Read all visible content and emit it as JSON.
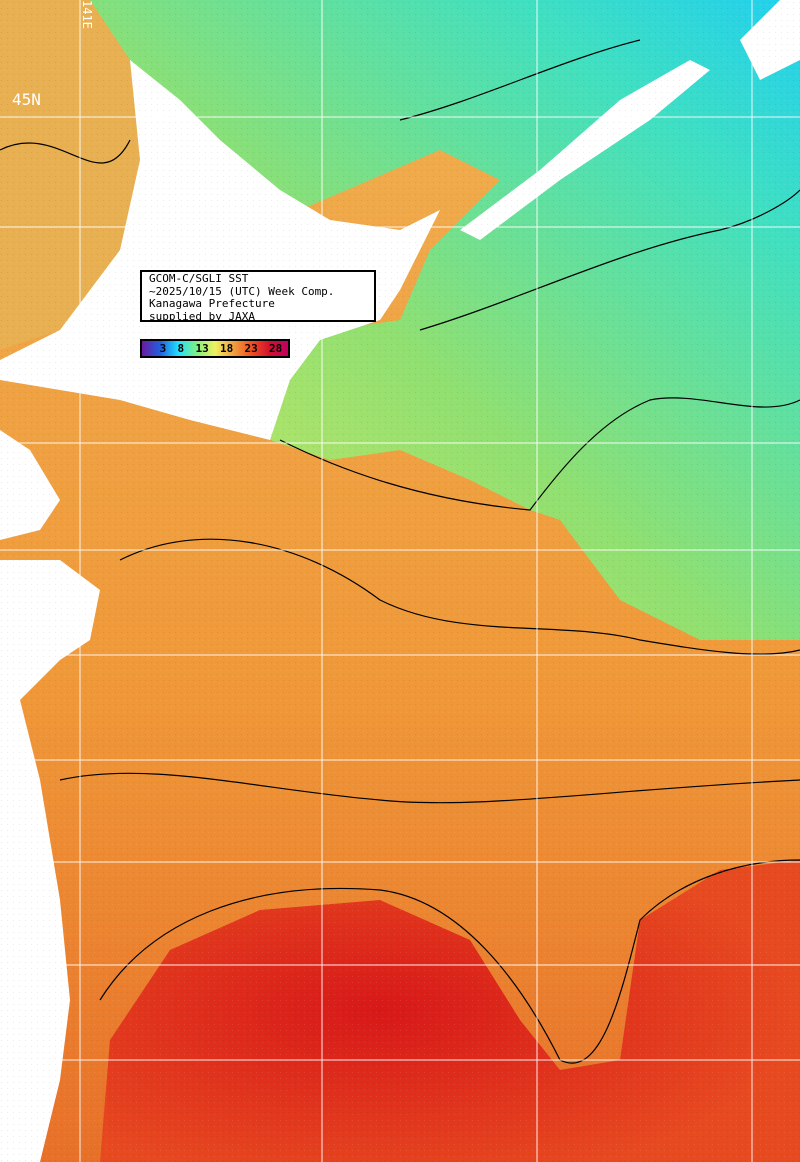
{
  "caption": {
    "line1": "GCOM-C/SGLI SST",
    "line2": "~2025/10/15 (UTC) Week Comp.",
    "line3": "Kanagawa Prefecture",
    "line4": "supplied by JAXA"
  },
  "colorbar": {
    "ticks": [
      "3",
      "8",
      "13",
      "18",
      "23",
      "28"
    ],
    "colors": [
      "#6a1aa0",
      "#2060e0",
      "#20e0ff",
      "#80f080",
      "#f0f060",
      "#f0a040",
      "#f05020",
      "#d01030",
      "#c00060"
    ]
  },
  "grid_labels": {
    "latitude": "45N",
    "longitude": "141E"
  },
  "sst_colors": {
    "cold": "#20e0e0",
    "cool": "#80e070",
    "mild": "#d8e860",
    "warm": "#f0a040",
    "hot": "#e03020",
    "land": "#ffffff"
  }
}
